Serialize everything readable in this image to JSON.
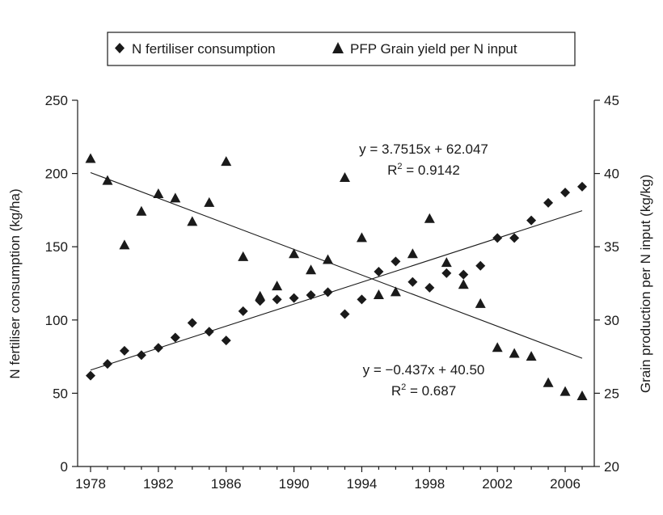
{
  "chart_data": {
    "type": "scatter",
    "legend": {
      "placement": "top-center",
      "entries": [
        {
          "label": "N fertiliser consumption",
          "marker": "diamond"
        },
        {
          "label": "PFP Grain yield per N input",
          "marker": "triangle"
        }
      ]
    },
    "xlabel": "",
    "ylabel_left": "N fertiliser consumption (kg/ha)",
    "ylabel_right": "Grain production per N input (kg/kg)",
    "xlim": [
      1977,
      2008
    ],
    "ylim_left": [
      0,
      250
    ],
    "ylim_right": [
      20,
      45
    ],
    "x_ticks": [
      1978,
      1982,
      1986,
      1990,
      1994,
      1998,
      2002,
      2006
    ],
    "y_ticks_left": [
      0,
      50,
      100,
      150,
      200,
      250
    ],
    "y_ticks_right": [
      20,
      25,
      30,
      35,
      40,
      45
    ],
    "grid": false,
    "series": [
      {
        "name": "N fertiliser consumption",
        "axis": "left",
        "marker": "diamond",
        "x": [
          1978,
          1979,
          1980,
          1981,
          1982,
          1983,
          1984,
          1985,
          1986,
          1987,
          1988,
          1989,
          1990,
          1991,
          1992,
          1993,
          1994,
          1995,
          1996,
          1997,
          1998,
          1999,
          2000,
          2001,
          2002,
          2003,
          2004,
          2005,
          2006,
          2007
        ],
        "y": [
          62,
          70,
          79,
          76,
          81,
          88,
          98,
          92,
          86,
          106,
          113,
          114,
          115,
          117,
          119,
          104,
          114,
          133,
          140,
          126,
          122,
          132,
          131,
          137,
          156,
          156,
          168,
          180,
          187,
          191
        ]
      },
      {
        "name": "PFP Grain yield per N input",
        "axis": "right",
        "marker": "triangle",
        "x": [
          1978,
          1979,
          1980,
          1981,
          1982,
          1983,
          1984,
          1985,
          1986,
          1987,
          1988,
          1989,
          1990,
          1991,
          1992,
          1993,
          1994,
          1995,
          1996,
          1997,
          1998,
          1999,
          2000,
          2001,
          2002,
          2003,
          2004,
          2005,
          2006,
          2007
        ],
        "y": [
          41.0,
          39.5,
          35.1,
          37.4,
          38.6,
          38.3,
          36.7,
          38.0,
          40.8,
          34.3,
          31.6,
          32.3,
          34.5,
          33.4,
          34.1,
          39.7,
          35.6,
          31.7,
          31.9,
          34.5,
          36.9,
          33.9,
          32.4,
          31.1,
          28.1,
          27.7,
          27.5,
          25.7,
          25.1,
          24.8
        ]
      }
    ],
    "trendlines": [
      {
        "axis": "left",
        "slope": 3.7515,
        "intercept": 62.047,
        "x_start": 1978,
        "x_end": 2007,
        "equation": "y = 3.7515x + 62.047",
        "r2_label": "R",
        "r2_sup": "2",
        "r2_value": " = 0.9142"
      },
      {
        "axis": "right",
        "slope": -0.437,
        "intercept": 40.5,
        "x_start": 1978,
        "x_end": 2007,
        "equation": "y = −0.437x + 40.50",
        "r2_label": "R",
        "r2_sup": "2",
        "r2_value": " = 0.687"
      }
    ]
  }
}
